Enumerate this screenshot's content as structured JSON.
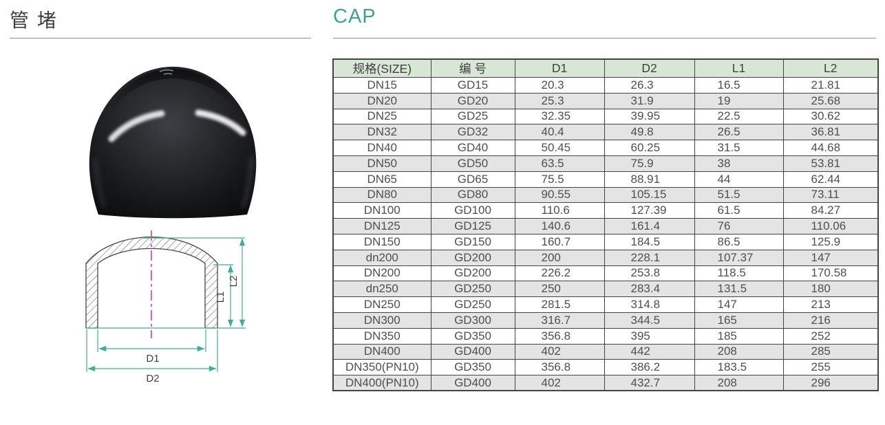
{
  "header": {
    "title_cn": "管 堵",
    "title_en": "CAP",
    "accent_color": "#3BA48F"
  },
  "table": {
    "headers": [
      "规格(SIZE)",
      "编 号",
      "D1",
      "D2",
      "L1",
      "L2"
    ],
    "header_bg": "#d9e8d6",
    "stripe_color": "#e4e4e4",
    "rows": [
      [
        "DN15",
        "GD15",
        "20.3",
        "26.3",
        "16.5",
        "21.81"
      ],
      [
        "DN20",
        "GD20",
        "25.3",
        "31.9",
        "19",
        "25.68"
      ],
      [
        "DN25",
        "GD25",
        "32.35",
        "39.95",
        "22.5",
        "30.62"
      ],
      [
        "DN32",
        "GD32",
        "40.4",
        "49.8",
        "26.5",
        "36.81"
      ],
      [
        "DN40",
        "GD40",
        "50.45",
        "60.25",
        "31.5",
        "44.68"
      ],
      [
        "DN50",
        "GD50",
        "63.5",
        "75.9",
        "38",
        "53.81"
      ],
      [
        "DN65",
        "GD65",
        "75.5",
        "88.91",
        "44",
        "62.44"
      ],
      [
        "DN80",
        "GD80",
        "90.55",
        "105.15",
        "51.5",
        "73.11"
      ],
      [
        "DN100",
        "GD100",
        "110.6",
        "127.39",
        "61.5",
        "84.27"
      ],
      [
        "DN125",
        "GD125",
        "140.6",
        "161.4",
        "76",
        "110.06"
      ],
      [
        "DN150",
        "GD150",
        "160.7",
        "184.5",
        "86.5",
        "125.9"
      ],
      [
        "dn200",
        "GD200",
        "200",
        "228.1",
        "107.37",
        "147"
      ],
      [
        "DN200",
        "GD200",
        "226.2",
        "253.8",
        "118.5",
        "170.58"
      ],
      [
        "dn250",
        "GD250",
        "250",
        "283.4",
        "131.5",
        "180"
      ],
      [
        "DN250",
        "GD250",
        "281.5",
        "314.8",
        "147",
        "213"
      ],
      [
        "DN300",
        "GD300",
        "316.7",
        "344.5",
        "165",
        "216"
      ],
      [
        "DN350",
        "GD350",
        "356.8",
        "395",
        "185",
        "252"
      ],
      [
        "DN400",
        "GD400",
        "402",
        "442",
        "208",
        "285"
      ],
      [
        "DN350(PN10)",
        "GD350",
        "356.8",
        "386.2",
        "183.5",
        "255"
      ],
      [
        "DN400(PN10)",
        "GD400",
        "402",
        "432.7",
        "208",
        "296"
      ]
    ]
  },
  "diagram": {
    "labels": {
      "d1": "D1",
      "d2": "D2",
      "l1": "L1",
      "l2": "L2"
    },
    "dimension_color": "#3EAE99",
    "centerline_color": "#E8368F"
  }
}
